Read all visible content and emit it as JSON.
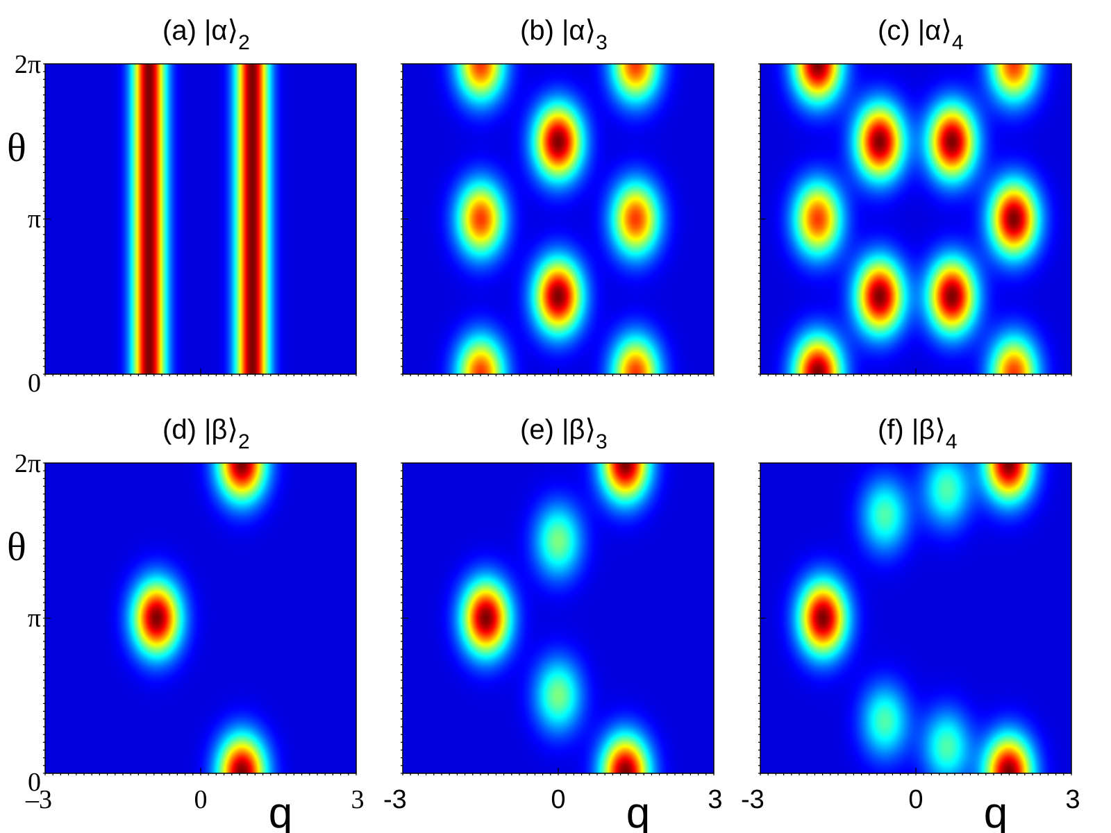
{
  "chart_data": [
    {
      "type": "heatmap",
      "panel": "(a)",
      "title_prefix": "(a) |α⟩",
      "title_subscript": "2",
      "x_range": [
        -3,
        3
      ],
      "y_range": [
        0,
        "2π"
      ],
      "x_ticks": [],
      "y_ticks": [
        "0",
        "π",
        "2π"
      ],
      "ylabel": "θ",
      "xlabel": "",
      "colormap": "jet",
      "peaks": [
        {
          "q": -1.0,
          "theta": "all",
          "value": 1.0,
          "shape": "vertical band"
        },
        {
          "q": 1.0,
          "theta": "all",
          "value": 1.0,
          "shape": "vertical band"
        }
      ]
    },
    {
      "type": "heatmap",
      "panel": "(b)",
      "title_prefix": "(b) |α⟩",
      "title_subscript": "3",
      "x_range": [
        -3,
        3
      ],
      "y_range": [
        0,
        "2π"
      ],
      "x_ticks": [],
      "y_ticks": [],
      "ylabel": "",
      "xlabel": "",
      "colormap": "jet",
      "peaks": [
        {
          "q": 0.0,
          "theta": "π/2",
          "value": 1.0
        },
        {
          "q": 0.0,
          "theta": "3π/2",
          "value": 1.0
        },
        {
          "q": -1.5,
          "theta": "0",
          "value": 0.8
        },
        {
          "q": -1.5,
          "theta": "π",
          "value": 0.8
        },
        {
          "q": -1.5,
          "theta": "2π",
          "value": 0.8
        },
        {
          "q": 1.5,
          "theta": "0",
          "value": 0.8
        },
        {
          "q": 1.5,
          "theta": "π",
          "value": 0.8
        },
        {
          "q": 1.5,
          "theta": "2π",
          "value": 0.8
        }
      ]
    },
    {
      "type": "heatmap",
      "panel": "(c)",
      "title_prefix": "(c) |α⟩",
      "title_subscript": "4",
      "x_range": [
        -3,
        3
      ],
      "y_range": [
        0,
        "2π"
      ],
      "x_ticks": [],
      "y_ticks": [],
      "ylabel": "",
      "xlabel": "",
      "colormap": "jet",
      "peaks": [
        {
          "q": -0.7,
          "theta": "π/2",
          "value": 1.0
        },
        {
          "q": 0.7,
          "theta": "π/2",
          "value": 1.0
        },
        {
          "q": -0.7,
          "theta": "3π/2",
          "value": 1.0
        },
        {
          "q": 0.7,
          "theta": "3π/2",
          "value": 1.0
        },
        {
          "q": -1.9,
          "theta": "0",
          "value": 1.0
        },
        {
          "q": -1.9,
          "theta": "π",
          "value": 0.8
        },
        {
          "q": -1.9,
          "theta": "2π",
          "value": 1.0
        },
        {
          "q": 1.9,
          "theta": "0",
          "value": 0.8
        },
        {
          "q": 1.9,
          "theta": "π",
          "value": 1.0
        },
        {
          "q": 1.9,
          "theta": "2π",
          "value": 0.8
        }
      ]
    },
    {
      "type": "heatmap",
      "panel": "(d)",
      "title_prefix": "(d) |β⟩",
      "title_subscript": "2",
      "x_range": [
        -3,
        3
      ],
      "y_range": [
        0,
        "2π"
      ],
      "x_ticks": [
        "–3",
        "0",
        "3"
      ],
      "y_ticks": [
        "0",
        "π",
        "2π"
      ],
      "ylabel": "θ",
      "xlabel": "q",
      "colormap": "jet",
      "peaks": [
        {
          "q": -0.85,
          "theta": "π",
          "value": 1.0
        },
        {
          "q": 0.8,
          "theta": "0",
          "value": 1.0
        },
        {
          "q": 0.8,
          "theta": "2π",
          "value": 1.0
        }
      ]
    },
    {
      "type": "heatmap",
      "panel": "(e)",
      "title_prefix": "(e) |β⟩",
      "title_subscript": "3",
      "x_range": [
        -3,
        3
      ],
      "y_range": [
        0,
        "2π"
      ],
      "x_ticks": [
        "-3",
        "0",
        "3"
      ],
      "y_ticks": [],
      "ylabel": "",
      "xlabel": "q",
      "colormap": "jet",
      "peaks": [
        {
          "q": -1.4,
          "theta": "π",
          "value": 1.0
        },
        {
          "q": 1.3,
          "theta": "0",
          "value": 1.0
        },
        {
          "q": 1.3,
          "theta": "2π",
          "value": 1.0
        },
        {
          "q": 0.0,
          "theta": "π/2",
          "value": 0.45
        },
        {
          "q": 0.0,
          "theta": "3π/2",
          "value": 0.45
        }
      ]
    },
    {
      "type": "heatmap",
      "panel": "(f)",
      "title_prefix": "(f) |β⟩",
      "title_subscript": "4",
      "x_range": [
        -3,
        3
      ],
      "y_range": [
        0,
        "2π"
      ],
      "x_ticks": [
        "-3",
        "0",
        "3"
      ],
      "y_ticks": [],
      "ylabel": "",
      "xlabel": "q",
      "colormap": "jet",
      "peaks": [
        {
          "q": -1.8,
          "theta": "π",
          "value": 1.0
        },
        {
          "q": 1.8,
          "theta": "0",
          "value": 1.0
        },
        {
          "q": 1.8,
          "theta": "2π",
          "value": 1.0
        },
        {
          "q": -0.6,
          "theta": "π/3",
          "value": 0.4
        },
        {
          "q": -0.6,
          "theta": "5π/3",
          "value": 0.4
        },
        {
          "q": 0.6,
          "theta": "π/6",
          "value": 0.4
        },
        {
          "q": 0.6,
          "theta": "11π/6",
          "value": 0.4
        }
      ]
    }
  ]
}
